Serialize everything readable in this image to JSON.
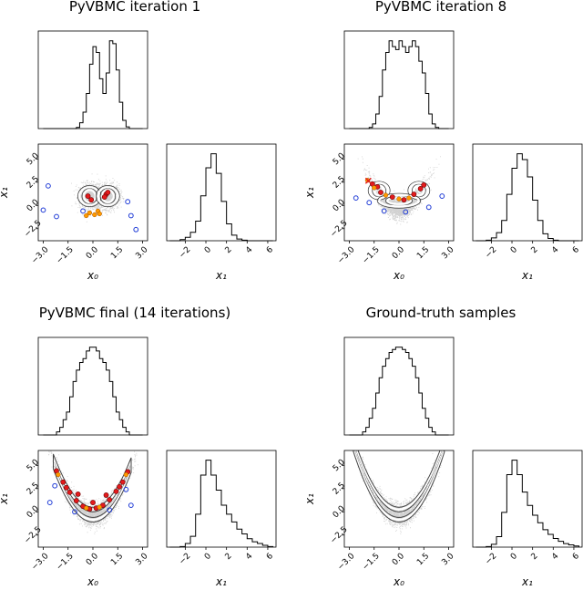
{
  "chart_data": [
    {
      "type": "corner",
      "title": "PyVBMC iteration 1",
      "variables": [
        "x0",
        "x1"
      ],
      "xlabel_left": "x₀",
      "ylabel_left": "x₁",
      "xlabel_right": "x₁",
      "x0_ticks": [
        "−3.0",
        "−1.5",
        "0.0",
        "1.5",
        "3.0"
      ],
      "x0_range": [
        -3.3,
        3.3
      ],
      "x1_ticks": [
        "−2",
        "0",
        "2",
        "4",
        "6"
      ],
      "x1_range": [
        -3.8,
        6.8
      ],
      "y_ticks": [
        "5.0",
        "2.5",
        "0.0",
        "−2.5"
      ],
      "y_range": [
        -3.8,
        6.6
      ],
      "hist_x0": {
        "bin_start": -3.0,
        "bin_width": 0.2,
        "counts": [
          0,
          0,
          0,
          0,
          0,
          0,
          0,
          0,
          0,
          0,
          2,
          10,
          28,
          60,
          110,
          140,
          130,
          85,
          60,
          95,
          150,
          145,
          100,
          45,
          14,
          3,
          0,
          0,
          0,
          0
        ]
      },
      "hist_x1": {
        "bin_start": -3.5,
        "bin_width": 0.5,
        "counts": [
          0,
          0,
          2,
          6,
          15,
          35,
          80,
          130,
          155,
          120,
          70,
          30,
          10,
          3,
          1,
          0,
          0,
          0,
          0,
          0
        ]
      },
      "scatter_spec": {
        "type": "two-blob",
        "centers": [
          [
            -0.2,
            1.0
          ],
          [
            0.9,
            1.0
          ]
        ],
        "spread": [
          0.55,
          0.75
        ]
      },
      "contours": [
        {
          "center": [
            -0.2,
            1.0
          ],
          "radii": [
            [
              0.35,
              0.65
            ],
            [
              0.6,
              0.95
            ]
          ]
        },
        {
          "center": [
            0.9,
            1.0
          ],
          "radii": [
            [
              0.35,
              0.65
            ],
            [
              0.6,
              0.95
            ]
          ]
        }
      ],
      "training_points_blue": [
        [
          -2.7,
          2.1
        ],
        [
          -2.2,
          -1.2
        ],
        [
          -3.0,
          -0.5
        ],
        [
          2.6,
          -2.6
        ],
        [
          2.1,
          0.4
        ],
        [
          2.3,
          -1.1
        ],
        [
          -0.6,
          -0.6
        ]
      ],
      "training_points_red": [
        [
          -0.3,
          1.0
        ],
        [
          0.8,
          1.2
        ],
        [
          0.7,
          0.9
        ],
        [
          -0.1,
          0.6
        ],
        [
          0.9,
          1.4
        ]
      ],
      "training_points_orange": [
        [
          -0.2,
          -0.8
        ],
        [
          0.1,
          -1.0
        ],
        [
          0.3,
          -0.6
        ],
        [
          0.4,
          -0.9
        ],
        [
          -0.4,
          -1.1
        ]
      ]
    },
    {
      "type": "corner",
      "title": "PyVBMC iteration 8",
      "variables": [
        "x0",
        "x1"
      ],
      "xlabel_left": "x₀",
      "ylabel_left": "x₁",
      "xlabel_right": "x₁",
      "x0_ticks": [
        "−3.0",
        "−1.5",
        "0.0",
        "1.5",
        "3.0"
      ],
      "x0_range": [
        -3.3,
        3.3
      ],
      "x1_ticks": [
        "−2",
        "0",
        "2",
        "4",
        "6"
      ],
      "x1_range": [
        -3.8,
        6.8
      ],
      "y_ticks": [
        "5.0",
        "2.5",
        "0.0",
        "−2.5"
      ],
      "y_range": [
        -3.8,
        6.6
      ],
      "hist_x0": {
        "bin_start": -3.0,
        "bin_width": 0.2,
        "counts": [
          0,
          0,
          0,
          0,
          0,
          0,
          2,
          8,
          25,
          55,
          100,
          130,
          150,
          140,
          135,
          150,
          140,
          130,
          140,
          150,
          140,
          115,
          95,
          60,
          25,
          8,
          2,
          0,
          0,
          0
        ]
      },
      "hist_x1": {
        "bin_start": -3.5,
        "bin_width": 0.5,
        "counts": [
          0,
          0,
          1,
          5,
          14,
          35,
          80,
          125,
          150,
          140,
          110,
          70,
          35,
          12,
          4,
          1,
          0,
          0,
          0,
          0
        ]
      },
      "scatter_spec": {
        "type": "banana",
        "a": 1.0,
        "spread": [
          0.75,
          0.55
        ],
        "xrange": [
          -2.2,
          2.2
        ]
      },
      "contours": [
        {
          "center": [
            -1.2,
            1.6
          ],
          "radii": [
            [
              0.3,
              0.5
            ],
            [
              0.55,
              0.8
            ]
          ]
        },
        {
          "center": [
            1.2,
            1.6
          ],
          "radii": [
            [
              0.3,
              0.5
            ],
            [
              0.55,
              0.8
            ]
          ]
        },
        {
          "center": [
            0.0,
            0.5
          ],
          "radii": [
            [
              0.7,
              0.35
            ],
            [
              1.2,
              0.6
            ]
          ]
        }
      ],
      "training_points_blue": [
        [
          -2.6,
          0.8
        ],
        [
          2.6,
          1.0
        ],
        [
          -0.9,
          -0.6
        ],
        [
          1.8,
          -0.2
        ],
        [
          0.4,
          -0.7
        ],
        [
          -1.8,
          0.3
        ]
      ],
      "training_points_red": [
        [
          -1.6,
          2.3
        ],
        [
          -1.1,
          1.4
        ],
        [
          -0.4,
          0.9
        ],
        [
          0.3,
          0.6
        ],
        [
          0.9,
          1.2
        ],
        [
          1.3,
          1.8
        ],
        [
          1.5,
          2.2
        ],
        [
          -1.3,
          2.0
        ]
      ],
      "training_points_orange": [
        [
          -1.9,
          2.7
        ],
        [
          -1.5,
          1.9
        ],
        [
          -0.8,
          1.1
        ],
        [
          0.0,
          0.7
        ],
        [
          0.6,
          0.8
        ]
      ],
      "marker_x": [
        -1.85,
        2.65
      ]
    },
    {
      "type": "corner",
      "title": "PyVBMC final (14 iterations)",
      "variables": [
        "x0",
        "x1"
      ],
      "xlabel_left": "x₀",
      "ylabel_left": "x₁",
      "xlabel_right": "x₁",
      "x0_ticks": [
        "−3.0",
        "−1.5",
        "0.0",
        "1.5",
        "3.0"
      ],
      "x0_range": [
        -3.3,
        3.3
      ],
      "x1_ticks": [
        "−2",
        "0",
        "2",
        "4",
        "6"
      ],
      "x1_range": [
        -3.8,
        6.8
      ],
      "y_ticks": [
        "5.0",
        "2.5",
        "0.0",
        "−2.5"
      ],
      "y_range": [
        -3.8,
        6.6
      ],
      "hist_x0": {
        "bin_start": -3.0,
        "bin_width": 0.2,
        "counts": [
          0,
          0,
          0,
          0,
          4,
          10,
          20,
          30,
          50,
          70,
          85,
          95,
          100,
          110,
          115,
          115,
          110,
          100,
          95,
          85,
          70,
          50,
          30,
          20,
          10,
          4,
          0,
          0,
          0,
          0
        ]
      },
      "hist_x1": {
        "bin_start": -3.5,
        "bin_width": 0.5,
        "counts": [
          0,
          0,
          1,
          6,
          18,
          55,
          120,
          145,
          120,
          95,
          70,
          55,
          42,
          30,
          22,
          14,
          9,
          6,
          3,
          1
        ]
      },
      "scatter_spec": {
        "type": "banana",
        "a": 1.0,
        "spread": [
          1.05,
          0.6
        ],
        "xrange": [
          -2.6,
          2.6
        ]
      },
      "contours": [
        {
          "center": [
            0.0,
            0.0
          ],
          "type": "banana"
        }
      ],
      "training_points_blue": [
        [
          -2.6,
          1.0
        ],
        [
          2.3,
          0.7
        ],
        [
          -1.1,
          0.0
        ],
        [
          1.0,
          0.2
        ],
        [
          -2.3,
          2.8
        ],
        [
          2.0,
          2.4
        ]
      ],
      "training_points_red": [
        [
          -2.2,
          4.4
        ],
        [
          -1.8,
          3.2
        ],
        [
          -1.4,
          2.1
        ],
        [
          -1.0,
          1.2
        ],
        [
          -0.6,
          0.6
        ],
        [
          -0.2,
          0.3
        ],
        [
          0.2,
          0.4
        ],
        [
          0.6,
          0.7
        ],
        [
          1.0,
          1.3
        ],
        [
          1.4,
          2.2
        ],
        [
          1.8,
          3.2
        ],
        [
          2.1,
          4.3
        ],
        [
          -0.9,
          1.9
        ],
        [
          0.8,
          1.8
        ],
        [
          0.0,
          1.0
        ],
        [
          -1.6,
          2.6
        ],
        [
          1.6,
          2.7
        ]
      ],
      "training_points_orange": [
        [
          -2.1,
          4.0
        ],
        [
          2.0,
          4.0
        ],
        [
          -0.4,
          0.4
        ],
        [
          0.4,
          0.5
        ]
      ]
    },
    {
      "type": "corner",
      "title": "Ground-truth samples",
      "variables": [
        "x0",
        "x1"
      ],
      "xlabel_left": "x₀",
      "ylabel_left": "x₁",
      "xlabel_right": "x₁",
      "x0_ticks": [
        "−3.0",
        "−1.5",
        "0.0",
        "1.5",
        "3.0"
      ],
      "x0_range": [
        -3.3,
        3.3
      ],
      "x1_ticks": [
        "−2",
        "0",
        "2",
        "4",
        "6"
      ],
      "x1_range": [
        -3.8,
        6.8
      ],
      "y_ticks": [
        "5.0",
        "2.5",
        "0.0",
        "−2.5"
      ],
      "y_range": [
        -3.8,
        6.6
      ],
      "hist_x0": {
        "bin_start": -3.0,
        "bin_width": 0.2,
        "counts": [
          0,
          0,
          0,
          0,
          4,
          10,
          22,
          35,
          55,
          75,
          90,
          100,
          108,
          112,
          115,
          115,
          112,
          108,
          100,
          90,
          75,
          55,
          35,
          22,
          10,
          4,
          0,
          0,
          0,
          0
        ]
      },
      "hist_x1": {
        "bin_start": -3.5,
        "bin_width": 0.5,
        "counts": [
          0,
          0,
          1,
          5,
          18,
          60,
          125,
          150,
          125,
          95,
          72,
          55,
          42,
          30,
          22,
          15,
          10,
          6,
          4,
          2
        ]
      },
      "scatter_spec": {
        "type": "banana",
        "a": 1.0,
        "spread": [
          1.05,
          0.6
        ],
        "xrange": [
          -3.0,
          3.0
        ]
      },
      "contours": [
        {
          "center": [
            0.0,
            0.0
          ],
          "type": "banana"
        }
      ],
      "training_points_blue": [],
      "training_points_red": [],
      "training_points_orange": []
    }
  ]
}
